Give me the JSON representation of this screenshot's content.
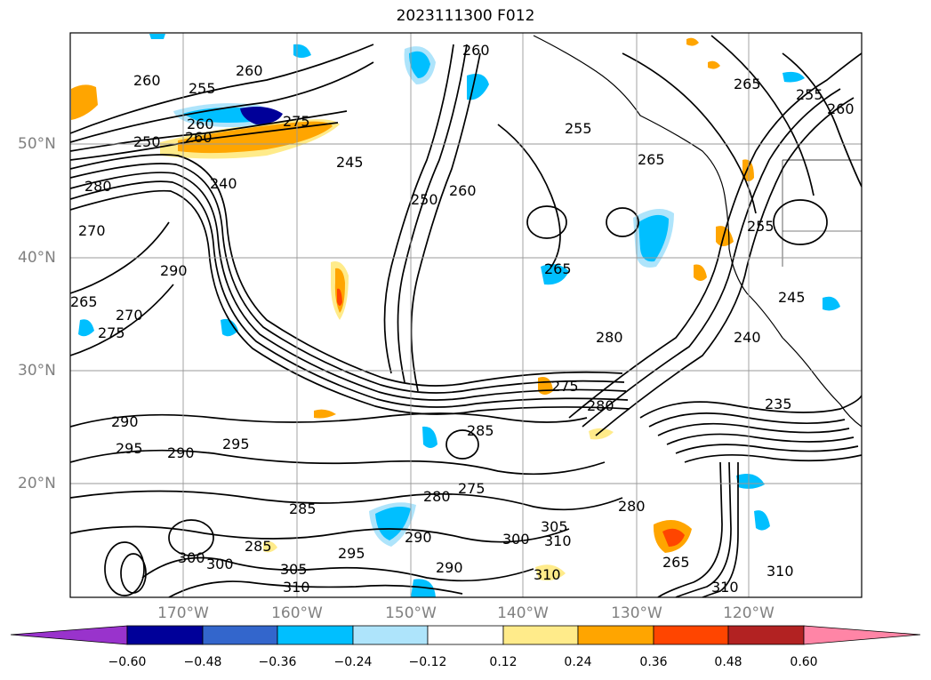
{
  "title": "2023111300 F012",
  "map": {
    "lat_ticks": [
      "50°N",
      "40°N",
      "30°N",
      "20°N"
    ],
    "lon_ticks": [
      "170°W",
      "160°W",
      "150°W",
      "140°W",
      "130°W",
      "120°W"
    ],
    "contour_labels": [
      "260",
      "260",
      "255",
      "260",
      "260",
      "255",
      "250",
      "265",
      "255",
      "260",
      "275",
      "260",
      "245",
      "240",
      "250",
      "260",
      "265",
      "255",
      "280",
      "270",
      "290",
      "265",
      "270",
      "275",
      "265",
      "245",
      "240",
      "280",
      "275",
      "280",
      "290",
      "295",
      "290",
      "295",
      "285",
      "280",
      "275",
      "285",
      "300",
      "300",
      "285",
      "305",
      "310",
      "295",
      "290",
      "305",
      "310",
      "300",
      "310",
      "310",
      "290",
      "280",
      "265",
      "235"
    ]
  },
  "colorbar": {
    "ticks": [
      "−0.60",
      "−0.48",
      "−0.36",
      "−0.24",
      "−0.12",
      "0.12",
      "0.24",
      "0.36",
      "0.48",
      "0.60"
    ],
    "colors": [
      "#9933cc",
      "#000099",
      "#3366cc",
      "#00bfff",
      "#aee4fb",
      "#ffffff",
      "#ffeb8a",
      "#ffa500",
      "#ff4500",
      "#b22222",
      "#ff85a6"
    ]
  },
  "chart_data": {
    "type": "heatmap",
    "title": "2023111300 F012",
    "extent_lon": [
      -178,
      -108
    ],
    "extent_lat": [
      10,
      60
    ],
    "colorbar_levels": [
      -0.6,
      -0.48,
      -0.36,
      -0.24,
      -0.12,
      0.12,
      0.24,
      0.36,
      0.48,
      0.6
    ],
    "colorbar_extend": "both"
  }
}
